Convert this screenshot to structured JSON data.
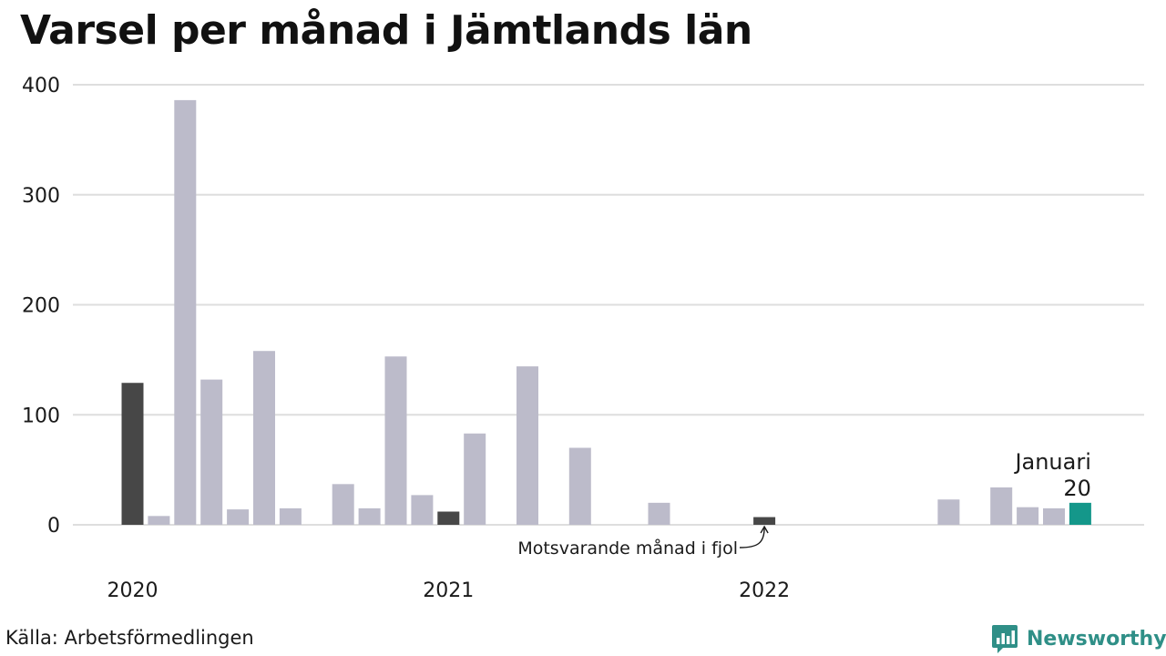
{
  "colors": {
    "default_bar": "#bcbbca",
    "previous_year_bar": "#474747",
    "highlight_bar": "#14978a",
    "gridline": "#dedede",
    "brand": "#2f8f87"
  },
  "brand": {
    "name": "Newsworthy",
    "icon": "newsworthy-logo-icon"
  },
  "source": "Källa: Arbetsförmedlingen",
  "chart_data": {
    "type": "bar",
    "title": "Varsel per månad i Jämtlands län",
    "xlabel": "",
    "ylabel": "",
    "ylim": [
      0,
      400
    ],
    "yticks": [
      0,
      100,
      200,
      300,
      400
    ],
    "grid": true,
    "legend": "none",
    "categories": [
      "2020-01",
      "2020-02",
      "2020-03",
      "2020-04",
      "2020-05",
      "2020-06",
      "2020-07",
      "2020-08",
      "2020-09",
      "2020-10",
      "2020-11",
      "2020-12",
      "2021-01",
      "2021-02",
      "2021-03",
      "2021-04",
      "2021-05",
      "2021-06",
      "2021-07",
      "2021-08",
      "2021-09",
      "2021-10",
      "2021-11",
      "2021-12",
      "2022-01",
      "2022-02",
      "2022-03",
      "2022-04",
      "2022-05",
      "2022-06",
      "2022-07",
      "2022-08",
      "2022-09",
      "2022-10",
      "2022-11",
      "2022-12",
      "2023-01"
    ],
    "xtick_labels": [
      {
        "category": "2020-01",
        "label": "2020"
      },
      {
        "category": "2021-01",
        "label": "2021"
      },
      {
        "category": "2022-01",
        "label": "2022"
      }
    ],
    "values": [
      129,
      8,
      386,
      132,
      14,
      158,
      15,
      0,
      37,
      15,
      153,
      27,
      12,
      83,
      0,
      144,
      0,
      70,
      0,
      0,
      20,
      0,
      0,
      0,
      7,
      0,
      0,
      0,
      0,
      0,
      0,
      23,
      0,
      34,
      16,
      15,
      20
    ],
    "previous_year_categories": [
      "2020-01",
      "2021-01",
      "2022-01"
    ],
    "highlight": {
      "category": "2023-01",
      "label": "Januari",
      "value_label": "20"
    },
    "annotation": {
      "category": "2022-01",
      "text": "Motsvarande månad i fjol"
    }
  }
}
